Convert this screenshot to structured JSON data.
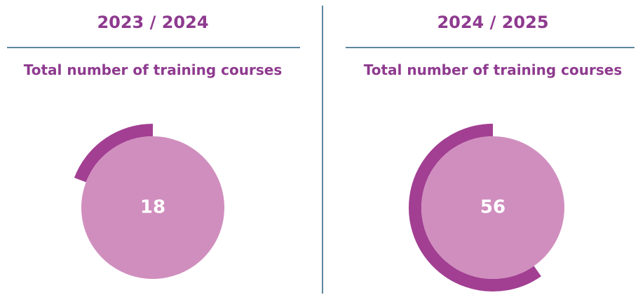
{
  "chart_data": [
    {
      "type": "gauge",
      "title": "2023 / 2024",
      "subtitle": "Total number of training courses",
      "values": [
        18
      ],
      "color": "#a23f92",
      "fill": "#d08ebe"
    },
    {
      "type": "gauge",
      "title": "2024 / 2025",
      "subtitle": "Total number of training courses",
      "values": [
        56
      ],
      "color": "#a23f92",
      "fill": "#d08ebe"
    }
  ]
}
